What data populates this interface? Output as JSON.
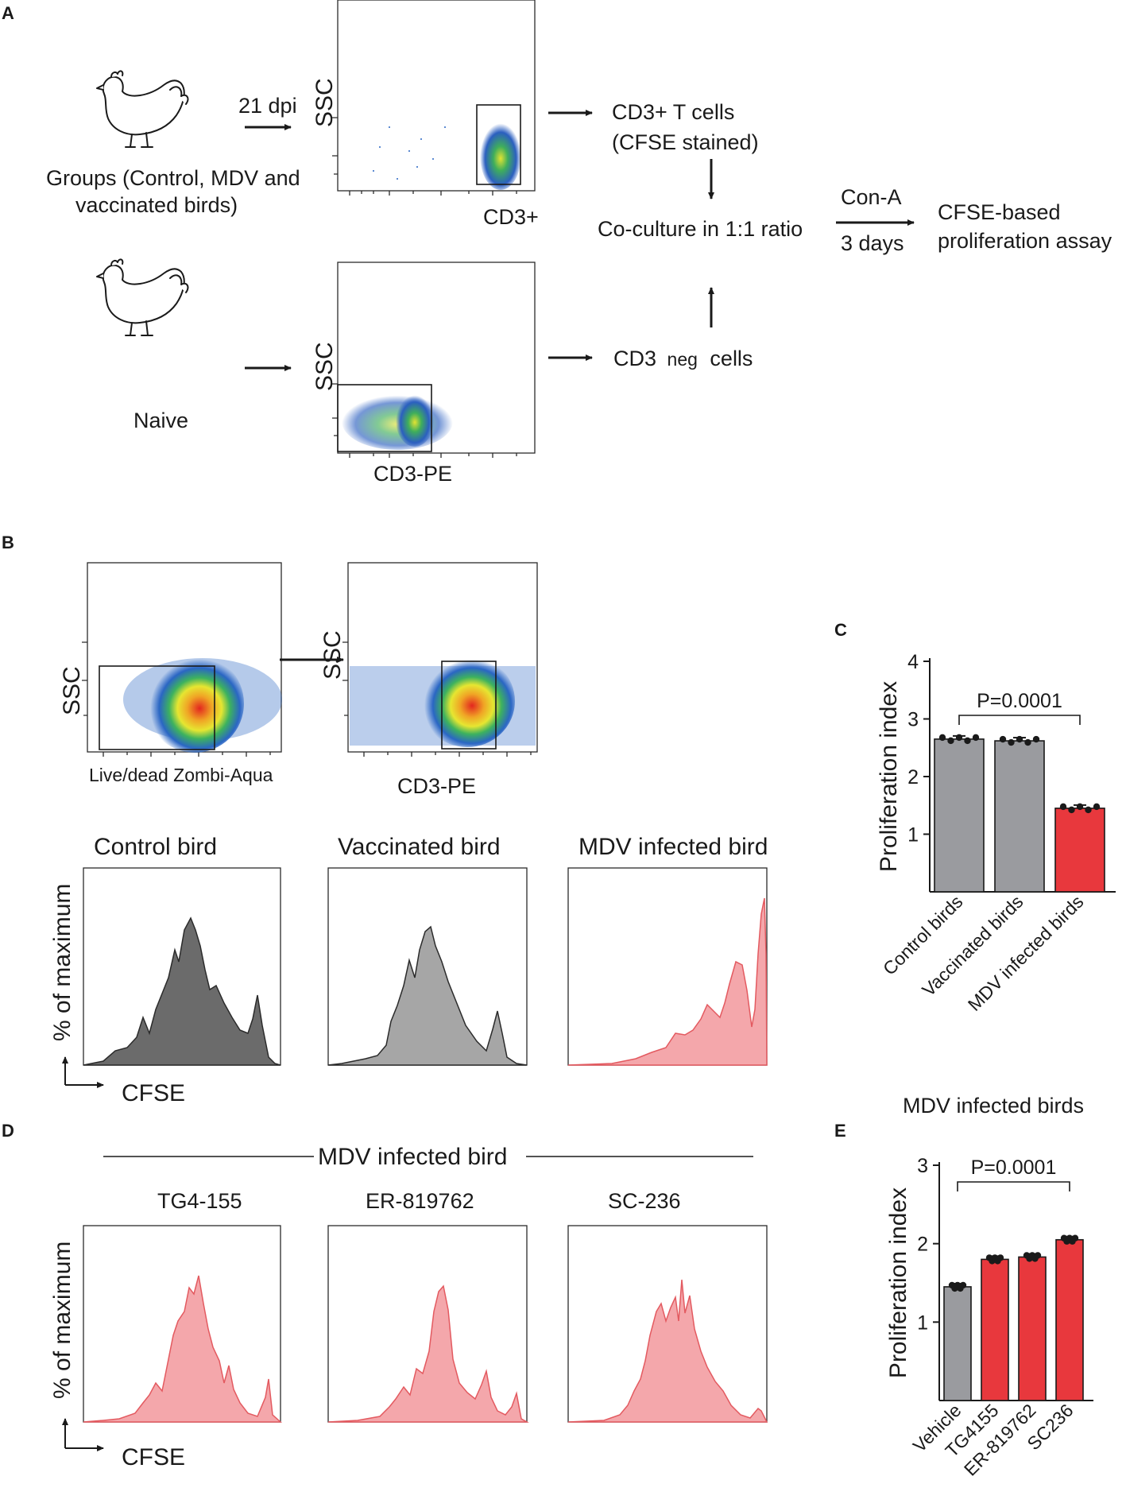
{
  "panels": {
    "A": {
      "letter": "A",
      "dpi_label": "21 dpi",
      "groups_line1": "Groups (Control, MDV and",
      "groups_line2": "vaccinated birds)",
      "naive_label": "Naive",
      "ssc_label": "SSC",
      "cd3plus_axis": "CD3+",
      "cd3pe_axis": "CD3-PE",
      "cd3_t_cells_line1": "CD3+ T cells",
      "cd3_t_cells_line2": "(CFSE stained)",
      "coculture": "Co-culture in 1:1 ratio",
      "cd3_neg_prefix": "CD3",
      "cd3_neg_sub": "neg",
      "cd3_neg_suffix": "cells",
      "cona": "Con-A",
      "days": "3 days",
      "assay_line1": "CFSE-based",
      "assay_line2": "proliferation assay"
    },
    "B": {
      "letter": "B",
      "ssc_label": "SSC",
      "live_dead_axis": "Live/dead Zombi-Aqua",
      "cd3pe_axis": "CD3-PE",
      "hist_titles": [
        "Control bird",
        "Vaccinated bird",
        "MDV infected bird"
      ],
      "y_label": "% of maximum",
      "x_label": "CFSE"
    },
    "D": {
      "letter": "D",
      "header": "MDV infected bird",
      "hist_titles": [
        "TG4-155",
        "ER-819762",
        "SC-236"
      ],
      "y_label": "% of maximum",
      "x_label": "CFSE"
    },
    "C": {
      "letter": "C"
    },
    "E": {
      "letter": "E"
    }
  },
  "colors": {
    "gray_bar": "#9a9b9f",
    "red_bar": "#e8383d",
    "control_hist": "#6b6b6b",
    "vaccinated_hist": "#a6a6a6",
    "infected_hist": "#f4a7ab"
  },
  "chart_data": [
    {
      "id": "C",
      "type": "bar",
      "title": "",
      "ylabel": "Proliferation index",
      "xlabel": "",
      "ylim": [
        0,
        4
      ],
      "yticks": [
        1,
        2,
        3,
        4
      ],
      "categories": [
        "Control birds",
        "Vaccinated birds",
        "MDV infected birds"
      ],
      "values": [
        2.65,
        2.62,
        1.45
      ],
      "bar_colors": [
        "#9a9b9f",
        "#9a9b9f",
        "#e8383d"
      ],
      "annotation": "P=0.0001"
    },
    {
      "id": "E",
      "type": "bar",
      "title": "MDV infected birds",
      "ylabel": "Proliferation index",
      "xlabel": "",
      "ylim": [
        0,
        3
      ],
      "yticks": [
        1,
        2,
        3
      ],
      "categories": [
        "Vehicle",
        "TG4155",
        "ER-819762",
        "SC236"
      ],
      "values": [
        1.45,
        1.8,
        1.83,
        2.05
      ],
      "bar_colors": [
        "#9a9b9f",
        "#e8383d",
        "#e8383d",
        "#e8383d"
      ],
      "annotation": "P=0.0001"
    }
  ]
}
